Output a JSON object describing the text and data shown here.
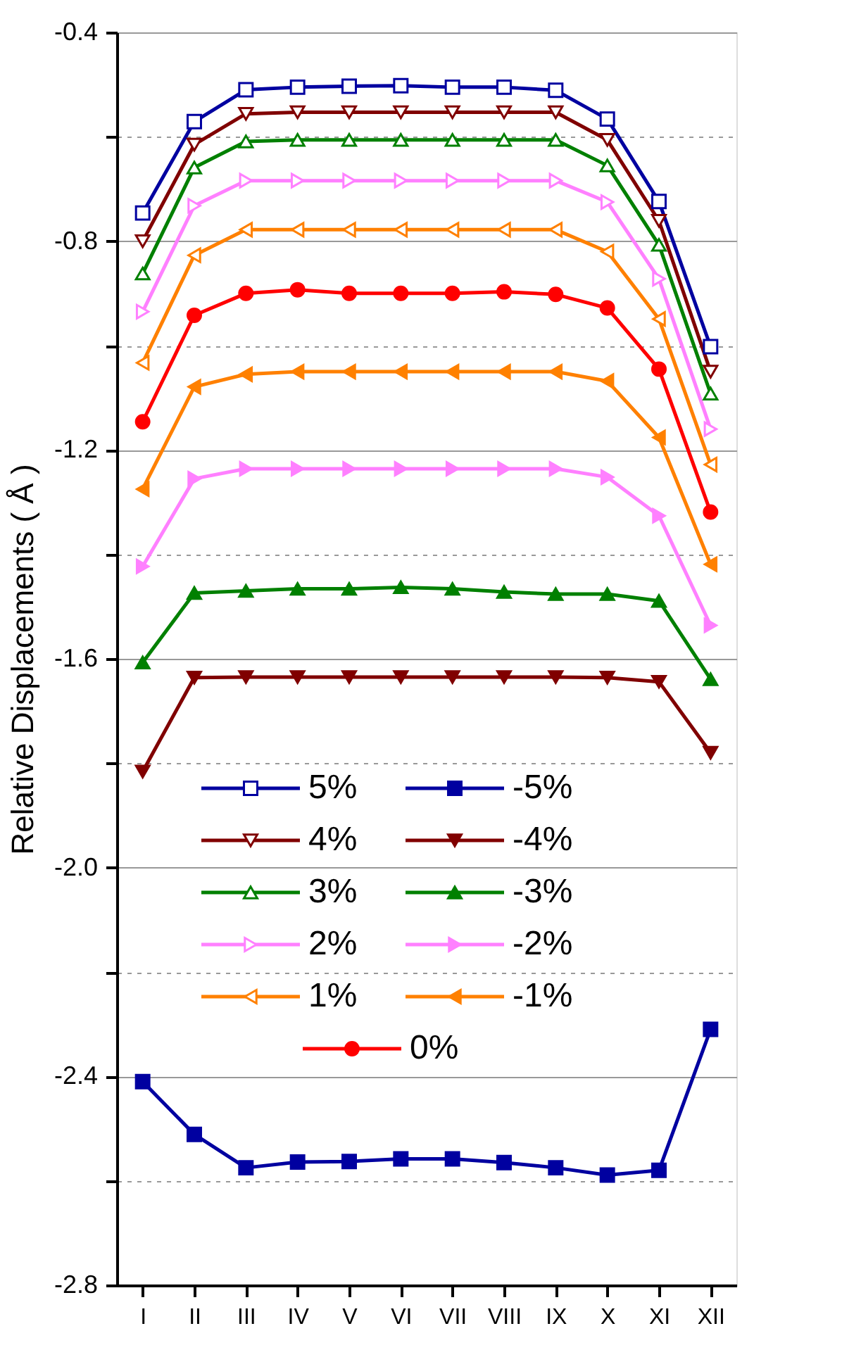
{
  "chart_data": {
    "type": "line",
    "ylabel": "Relative Displacements ( Å )",
    "categories": [
      "I",
      "II",
      "III",
      "IV",
      "V",
      "VI",
      "VII",
      "VIII",
      "IX",
      "X",
      "XI",
      "XII"
    ],
    "ylim": [
      -2.8,
      -0.4
    ],
    "yticks": [
      -2.8,
      {
        "value": -2.6,
        "label": null
      },
      -2.4,
      {
        "value": -2.2,
        "label": null
      },
      {
        "value": -2.0,
        "label": "-2.0"
      },
      {
        "value": -1.8,
        "label": null
      },
      -1.6,
      {
        "value": -1.4,
        "label": null
      },
      -1.2,
      {
        "value": -1.0,
        "label": null
      },
      -0.8,
      {
        "value": -0.6,
        "label": null
      },
      -0.4
    ],
    "grid": "y",
    "legend": "bottom",
    "line_style": "solid",
    "series": [
      {
        "name": "5%",
        "color": "#0000a0",
        "marker": "square-open",
        "values": [
          -0.746,
          -0.571,
          -0.51,
          -0.505,
          -0.503,
          -0.502,
          -0.505,
          -0.505,
          -0.511,
          -0.566,
          -0.724,
          -1.002
        ]
      },
      {
        "name": "-5%",
        "color": "#0000a0",
        "marker": "square",
        "values": [
          -2.41,
          -2.511,
          -2.575,
          -2.564,
          -2.563,
          -2.558,
          -2.558,
          -2.565,
          -2.575,
          -2.589,
          -2.58,
          -2.31
        ]
      },
      {
        "name": "4%",
        "color": "#800000",
        "marker": "triangle-down-open",
        "values": [
          -0.8,
          -0.615,
          -0.556,
          -0.553,
          -0.553,
          -0.553,
          -0.553,
          -0.553,
          -0.553,
          -0.606,
          -0.761,
          -1.05
        ]
      },
      {
        "name": "-4%",
        "color": "#800000",
        "marker": "triangle-down",
        "values": [
          -1.816,
          -1.636,
          -1.635,
          -1.635,
          -1.635,
          -1.635,
          -1.635,
          -1.635,
          -1.635,
          -1.636,
          -1.644,
          -1.78
        ]
      },
      {
        "name": "3%",
        "color": "#008000",
        "marker": "triangle-up-open",
        "values": [
          -0.862,
          -0.659,
          -0.609,
          -0.606,
          -0.606,
          -0.606,
          -0.606,
          -0.606,
          -0.606,
          -0.655,
          -0.807,
          -1.092
        ]
      },
      {
        "name": "-3%",
        "color": "#008000",
        "marker": "triangle-up",
        "values": [
          -1.607,
          -1.474,
          -1.47,
          -1.466,
          -1.466,
          -1.463,
          -1.466,
          -1.472,
          -1.476,
          -1.476,
          -1.489,
          -1.639
        ]
      },
      {
        "name": "2%",
        "color": "#ff80ff",
        "marker": "triangle-right-open",
        "values": [
          -0.935,
          -0.732,
          -0.684,
          -0.684,
          -0.684,
          -0.684,
          -0.684,
          -0.684,
          -0.684,
          -0.725,
          -0.872,
          -1.16
        ]
      },
      {
        "name": "-2%",
        "color": "#ff80ff",
        "marker": "triangle-right",
        "values": [
          -1.423,
          -1.255,
          -1.236,
          -1.236,
          -1.236,
          -1.236,
          -1.236,
          -1.236,
          -1.236,
          -1.252,
          -1.326,
          -1.536
        ]
      },
      {
        "name": "1%",
        "color": "#ff8000",
        "marker": "triangle-left-open",
        "values": [
          -1.033,
          -0.827,
          -0.778,
          -0.778,
          -0.778,
          -0.778,
          -0.778,
          -0.778,
          -0.778,
          -0.82,
          -0.949,
          -1.228
        ]
      },
      {
        "name": "-1%",
        "color": "#ff8000",
        "marker": "triangle-left",
        "values": [
          -1.275,
          -1.079,
          -1.055,
          -1.05,
          -1.05,
          -1.05,
          -1.05,
          -1.05,
          -1.05,
          -1.068,
          -1.176,
          -1.419
        ]
      },
      {
        "name": "0%",
        "color": "#ff0000",
        "marker": "circle",
        "values": [
          -1.146,
          -0.942,
          -0.9,
          -0.893,
          -0.9,
          -0.9,
          -0.9,
          -0.897,
          -0.902,
          -0.928,
          -1.045,
          -1.319
        ]
      }
    ]
  }
}
